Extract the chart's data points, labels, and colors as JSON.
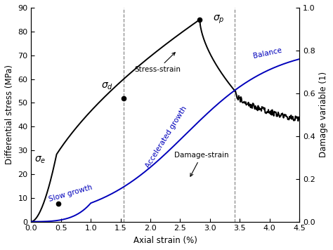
{
  "xlim": [
    0.0,
    4.5
  ],
  "ylim_left": [
    0,
    90
  ],
  "ylim_right": [
    0.0,
    1.0
  ],
  "xlabel": "Axial strain (%)",
  "ylabel_left": "Differential stress (MPa)",
  "ylabel_right": "Damage variable (1)",
  "stress_color": "#000000",
  "damage_color": "#0000bb",
  "dashed_line_color": "#888888",
  "point_sigma_e": [
    0.45,
    7.5
  ],
  "point_sigma_d": [
    1.55,
    52
  ],
  "point_sigma_p": [
    2.83,
    85
  ],
  "vline1_x": 1.55,
  "vline2_x": 3.42,
  "xticks": [
    0.0,
    0.5,
    1.0,
    1.5,
    2.0,
    2.5,
    3.0,
    3.5,
    4.0,
    4.5
  ],
  "yticks_left": [
    0,
    10,
    20,
    30,
    40,
    50,
    60,
    70,
    80,
    90
  ],
  "yticks_right": [
    0.0,
    0.2,
    0.4,
    0.6,
    0.8,
    1.0
  ]
}
